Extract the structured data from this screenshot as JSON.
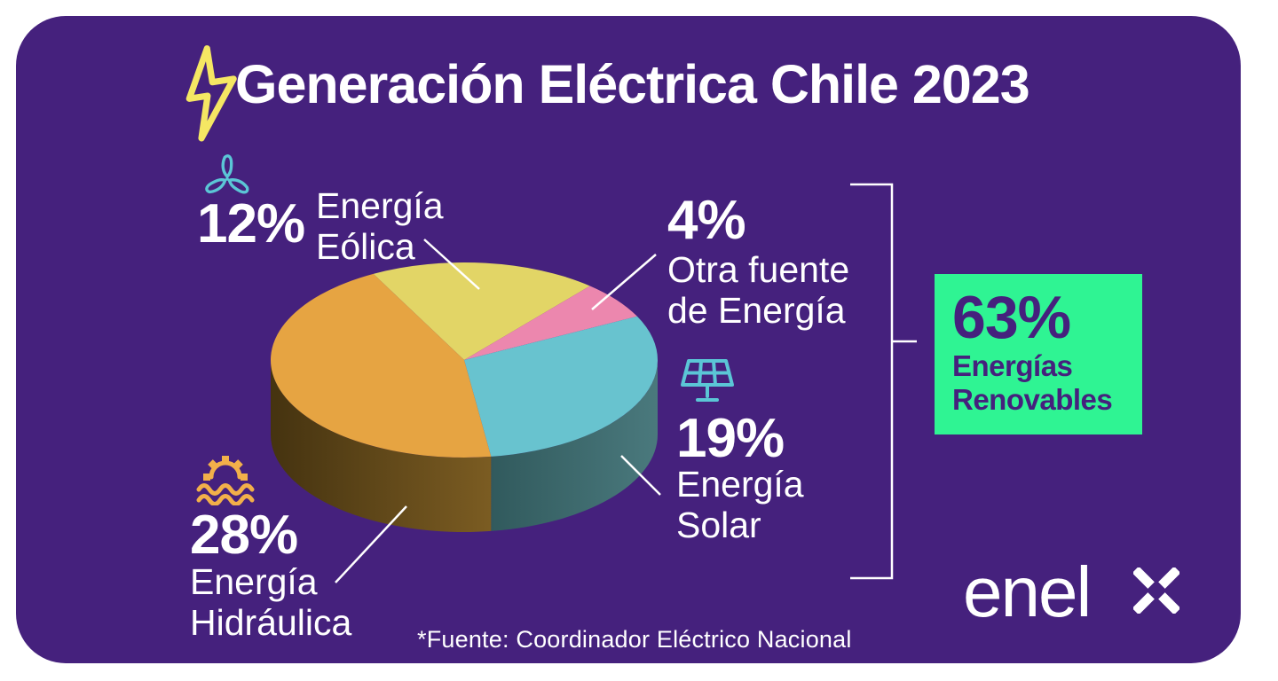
{
  "title": "Generación Eléctrica Chile 2023",
  "source_note": "*Fuente: Coordinador Eléctrico Nacional",
  "brand": {
    "wordmark": "enel",
    "suffix": "x"
  },
  "icons": {
    "header": "lightning-bolt-icon",
    "eolica": "wind-turbine-icon",
    "solar": "solar-panel-icon",
    "hidraulica": "hydro-turbine-waves-icon",
    "brand_suffix": "enel-x-cross-icon"
  },
  "colors": {
    "page_background": "#ffffff",
    "card_background": "#45217d",
    "text_white": "#ffffff",
    "accent_green": "#2ff493",
    "accent_purple_text": "#45217d",
    "icon_teal": "#5bc6d6",
    "icon_orange": "#f2b04a",
    "bolt_yellow": "#f5e763",
    "connector_white": "#ffffff"
  },
  "chart_data": {
    "type": "pie",
    "render": "3d-pie",
    "title": "Generación Eléctrica Chile 2023",
    "unit": "%",
    "start_angle_deg": 118,
    "clockwise": true,
    "legend_position": "around-slices",
    "slices": [
      {
        "label": "Energía Eólica",
        "pct_label": "12%",
        "value": 12,
        "name_lines": [
          "Energía",
          "Eólica"
        ],
        "color": "#e2d566",
        "wall_from": "#6a632c",
        "wall_to": "#6a632c"
      },
      {
        "label": "Otra fuente de Energía",
        "pct_label": "4%",
        "value": 4,
        "name_lines": [
          "Otra fuente",
          "de Energía"
        ],
        "color": "#ec87ae",
        "wall_from": "#7a4458",
        "wall_to": "#7a4458"
      },
      {
        "label": "Energía Solar",
        "pct_label": "19%",
        "value": 19,
        "name_lines": [
          "Energía",
          "Solar"
        ],
        "color": "#68c3cf",
        "wall_from": "#315a5d",
        "wall_to": "#4a797d"
      },
      {
        "label": "Energía Hidráulica",
        "pct_label": "28%",
        "value": 28,
        "name_lines": [
          "Energía",
          "Hidráulica"
        ],
        "color": "#e6a442",
        "wall_from": "#453310",
        "wall_to": "#7b5c22"
      }
    ],
    "total": {
      "pct_label": "63%",
      "value": 63,
      "name_lines": [
        "Energías",
        "Renovables"
      ],
      "box_color": "#2ff493",
      "text_color": "#45217d"
    }
  }
}
